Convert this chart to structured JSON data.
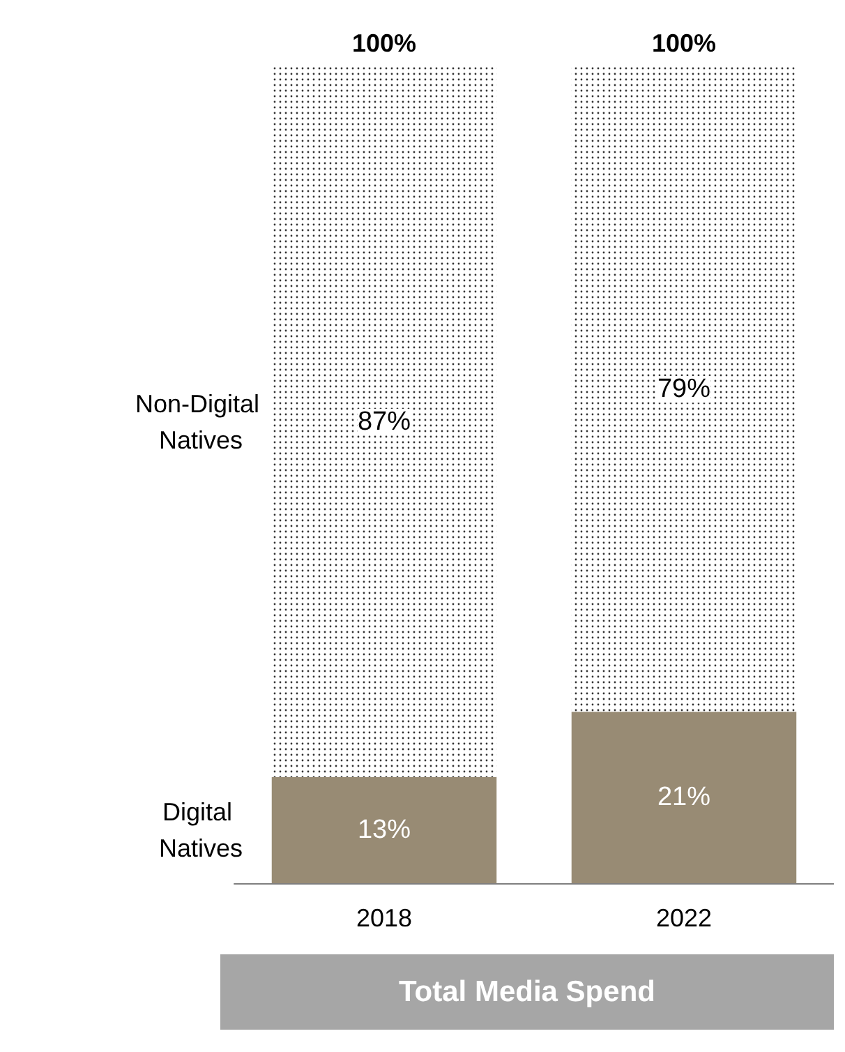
{
  "chart_data": {
    "type": "bar",
    "stacked": true,
    "categories": [
      "2018",
      "2022"
    ],
    "series": [
      {
        "name": "Digital Natives",
        "color": "#988b74",
        "values": [
          13,
          21
        ],
        "value_labels": [
          "13%",
          "21%"
        ]
      },
      {
        "name": "Non-Digital Natives",
        "color": "#ffffff",
        "values": [
          87,
          79
        ],
        "value_labels": [
          "87%",
          "79%"
        ]
      }
    ],
    "totals": [
      "100%",
      "100%"
    ],
    "xlabel": "Total Media Spend"
  }
}
